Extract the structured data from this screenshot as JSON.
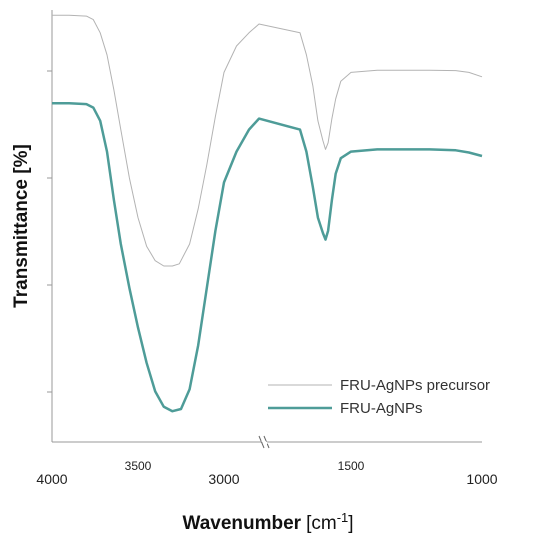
{
  "chart_data": {
    "type": "line",
    "title": "",
    "xlabel": "Wavenumber",
    "xunit_prefix": "[cm",
    "xunit_exp": "-1",
    "xunit_suffix": "]",
    "ylabel": "Transmittance [%]",
    "x_reversed": true,
    "x_axis_break": true,
    "x_ticks": {
      "left_segment": [
        "4000",
        "3500",
        "3000"
      ],
      "right_segment": [
        "1500",
        "1000"
      ]
    },
    "y_ticks_labeled": false,
    "grid": false,
    "legend_position": "bottom-right",
    "series": [
      {
        "name": "FRU-AgNPs precursor",
        "color": "#b3b3b3",
        "points": [
          [
            4000,
            97
          ],
          [
            3900,
            97
          ],
          [
            3800,
            96.8
          ],
          [
            3760,
            96
          ],
          [
            3720,
            93
          ],
          [
            3680,
            88
          ],
          [
            3640,
            80
          ],
          [
            3600,
            71
          ],
          [
            3550,
            60
          ],
          [
            3500,
            51
          ],
          [
            3450,
            44.5
          ],
          [
            3400,
            41.2
          ],
          [
            3350,
            40
          ],
          [
            3300,
            40
          ],
          [
            3260,
            40.5
          ],
          [
            3200,
            45
          ],
          [
            3150,
            53
          ],
          [
            3100,
            63
          ],
          [
            3050,
            74
          ],
          [
            3000,
            84
          ],
          [
            2950,
            90
          ],
          [
            2900,
            93
          ],
          [
            2860,
            95
          ],
          [
            1900,
            93
          ],
          [
            1850,
            88
          ],
          [
            1800,
            81
          ],
          [
            1760,
            73
          ],
          [
            1720,
            68.5
          ],
          [
            1700,
            66.5
          ],
          [
            1680,
            68
          ],
          [
            1650,
            73.5
          ],
          [
            1620,
            78
          ],
          [
            1580,
            82
          ],
          [
            1500,
            84
          ],
          [
            1400,
            84.5
          ],
          [
            1200,
            84.5
          ],
          [
            1100,
            84.4
          ],
          [
            1050,
            84
          ],
          [
            1000,
            83
          ]
        ]
      },
      {
        "name": "FRU-AgNPs",
        "color": "#4e9c98",
        "points": [
          [
            4000,
            77
          ],
          [
            3900,
            77
          ],
          [
            3800,
            76.8
          ],
          [
            3760,
            76
          ],
          [
            3720,
            73
          ],
          [
            3680,
            66
          ],
          [
            3640,
            55
          ],
          [
            3600,
            45
          ],
          [
            3550,
            35
          ],
          [
            3500,
            26
          ],
          [
            3450,
            18
          ],
          [
            3400,
            11.5
          ],
          [
            3350,
            8
          ],
          [
            3300,
            7
          ],
          [
            3250,
            7.5
          ],
          [
            3200,
            12
          ],
          [
            3150,
            22
          ],
          [
            3100,
            35
          ],
          [
            3050,
            48
          ],
          [
            3000,
            59
          ],
          [
            2950,
            66
          ],
          [
            2900,
            71
          ],
          [
            2860,
            73.5
          ],
          [
            1900,
            71
          ],
          [
            1850,
            66
          ],
          [
            1800,
            58
          ],
          [
            1760,
            51
          ],
          [
            1720,
            47.5
          ],
          [
            1700,
            46
          ],
          [
            1680,
            48
          ],
          [
            1650,
            55
          ],
          [
            1620,
            61
          ],
          [
            1580,
            64.5
          ],
          [
            1500,
            66
          ],
          [
            1400,
            66.5
          ],
          [
            1200,
            66.5
          ],
          [
            1100,
            66.3
          ],
          [
            1050,
            65.8
          ],
          [
            1000,
            65
          ]
        ]
      }
    ]
  }
}
